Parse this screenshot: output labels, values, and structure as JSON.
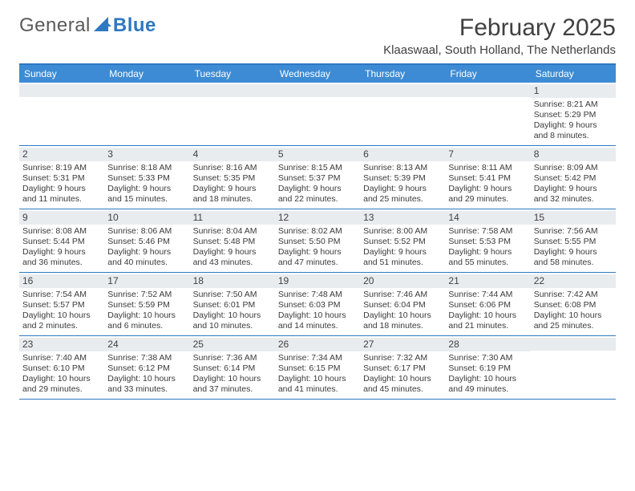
{
  "logo": {
    "text1": "General",
    "text2": "Blue"
  },
  "title": "February 2025",
  "location": "Klaaswaal, South Holland, The Netherlands",
  "colors": {
    "header_bar": "#3d8bd4",
    "border": "#2e78c2",
    "daynum_bg": "#e9ecef",
    "text": "#3a3a3a",
    "title_text": "#404040"
  },
  "weekdays": [
    "Sunday",
    "Monday",
    "Tuesday",
    "Wednesday",
    "Thursday",
    "Friday",
    "Saturday"
  ],
  "weeks": [
    [
      {
        "day": "",
        "sunrise": "",
        "sunset": "",
        "daylight": ""
      },
      {
        "day": "",
        "sunrise": "",
        "sunset": "",
        "daylight": ""
      },
      {
        "day": "",
        "sunrise": "",
        "sunset": "",
        "daylight": ""
      },
      {
        "day": "",
        "sunrise": "",
        "sunset": "",
        "daylight": ""
      },
      {
        "day": "",
        "sunrise": "",
        "sunset": "",
        "daylight": ""
      },
      {
        "day": "",
        "sunrise": "",
        "sunset": "",
        "daylight": ""
      },
      {
        "day": "1",
        "sunrise": "Sunrise: 8:21 AM",
        "sunset": "Sunset: 5:29 PM",
        "daylight": "Daylight: 9 hours and 8 minutes."
      }
    ],
    [
      {
        "day": "2",
        "sunrise": "Sunrise: 8:19 AM",
        "sunset": "Sunset: 5:31 PM",
        "daylight": "Daylight: 9 hours and 11 minutes."
      },
      {
        "day": "3",
        "sunrise": "Sunrise: 8:18 AM",
        "sunset": "Sunset: 5:33 PM",
        "daylight": "Daylight: 9 hours and 15 minutes."
      },
      {
        "day": "4",
        "sunrise": "Sunrise: 8:16 AM",
        "sunset": "Sunset: 5:35 PM",
        "daylight": "Daylight: 9 hours and 18 minutes."
      },
      {
        "day": "5",
        "sunrise": "Sunrise: 8:15 AM",
        "sunset": "Sunset: 5:37 PM",
        "daylight": "Daylight: 9 hours and 22 minutes."
      },
      {
        "day": "6",
        "sunrise": "Sunrise: 8:13 AM",
        "sunset": "Sunset: 5:39 PM",
        "daylight": "Daylight: 9 hours and 25 minutes."
      },
      {
        "day": "7",
        "sunrise": "Sunrise: 8:11 AM",
        "sunset": "Sunset: 5:41 PM",
        "daylight": "Daylight: 9 hours and 29 minutes."
      },
      {
        "day": "8",
        "sunrise": "Sunrise: 8:09 AM",
        "sunset": "Sunset: 5:42 PM",
        "daylight": "Daylight: 9 hours and 32 minutes."
      }
    ],
    [
      {
        "day": "9",
        "sunrise": "Sunrise: 8:08 AM",
        "sunset": "Sunset: 5:44 PM",
        "daylight": "Daylight: 9 hours and 36 minutes."
      },
      {
        "day": "10",
        "sunrise": "Sunrise: 8:06 AM",
        "sunset": "Sunset: 5:46 PM",
        "daylight": "Daylight: 9 hours and 40 minutes."
      },
      {
        "day": "11",
        "sunrise": "Sunrise: 8:04 AM",
        "sunset": "Sunset: 5:48 PM",
        "daylight": "Daylight: 9 hours and 43 minutes."
      },
      {
        "day": "12",
        "sunrise": "Sunrise: 8:02 AM",
        "sunset": "Sunset: 5:50 PM",
        "daylight": "Daylight: 9 hours and 47 minutes."
      },
      {
        "day": "13",
        "sunrise": "Sunrise: 8:00 AM",
        "sunset": "Sunset: 5:52 PM",
        "daylight": "Daylight: 9 hours and 51 minutes."
      },
      {
        "day": "14",
        "sunrise": "Sunrise: 7:58 AM",
        "sunset": "Sunset: 5:53 PM",
        "daylight": "Daylight: 9 hours and 55 minutes."
      },
      {
        "day": "15",
        "sunrise": "Sunrise: 7:56 AM",
        "sunset": "Sunset: 5:55 PM",
        "daylight": "Daylight: 9 hours and 58 minutes."
      }
    ],
    [
      {
        "day": "16",
        "sunrise": "Sunrise: 7:54 AM",
        "sunset": "Sunset: 5:57 PM",
        "daylight": "Daylight: 10 hours and 2 minutes."
      },
      {
        "day": "17",
        "sunrise": "Sunrise: 7:52 AM",
        "sunset": "Sunset: 5:59 PM",
        "daylight": "Daylight: 10 hours and 6 minutes."
      },
      {
        "day": "18",
        "sunrise": "Sunrise: 7:50 AM",
        "sunset": "Sunset: 6:01 PM",
        "daylight": "Daylight: 10 hours and 10 minutes."
      },
      {
        "day": "19",
        "sunrise": "Sunrise: 7:48 AM",
        "sunset": "Sunset: 6:03 PM",
        "daylight": "Daylight: 10 hours and 14 minutes."
      },
      {
        "day": "20",
        "sunrise": "Sunrise: 7:46 AM",
        "sunset": "Sunset: 6:04 PM",
        "daylight": "Daylight: 10 hours and 18 minutes."
      },
      {
        "day": "21",
        "sunrise": "Sunrise: 7:44 AM",
        "sunset": "Sunset: 6:06 PM",
        "daylight": "Daylight: 10 hours and 21 minutes."
      },
      {
        "day": "22",
        "sunrise": "Sunrise: 7:42 AM",
        "sunset": "Sunset: 6:08 PM",
        "daylight": "Daylight: 10 hours and 25 minutes."
      }
    ],
    [
      {
        "day": "23",
        "sunrise": "Sunrise: 7:40 AM",
        "sunset": "Sunset: 6:10 PM",
        "daylight": "Daylight: 10 hours and 29 minutes."
      },
      {
        "day": "24",
        "sunrise": "Sunrise: 7:38 AM",
        "sunset": "Sunset: 6:12 PM",
        "daylight": "Daylight: 10 hours and 33 minutes."
      },
      {
        "day": "25",
        "sunrise": "Sunrise: 7:36 AM",
        "sunset": "Sunset: 6:14 PM",
        "daylight": "Daylight: 10 hours and 37 minutes."
      },
      {
        "day": "26",
        "sunrise": "Sunrise: 7:34 AM",
        "sunset": "Sunset: 6:15 PM",
        "daylight": "Daylight: 10 hours and 41 minutes."
      },
      {
        "day": "27",
        "sunrise": "Sunrise: 7:32 AM",
        "sunset": "Sunset: 6:17 PM",
        "daylight": "Daylight: 10 hours and 45 minutes."
      },
      {
        "day": "28",
        "sunrise": "Sunrise: 7:30 AM",
        "sunset": "Sunset: 6:19 PM",
        "daylight": "Daylight: 10 hours and 49 minutes."
      },
      {
        "day": "",
        "sunrise": "",
        "sunset": "",
        "daylight": ""
      }
    ]
  ]
}
